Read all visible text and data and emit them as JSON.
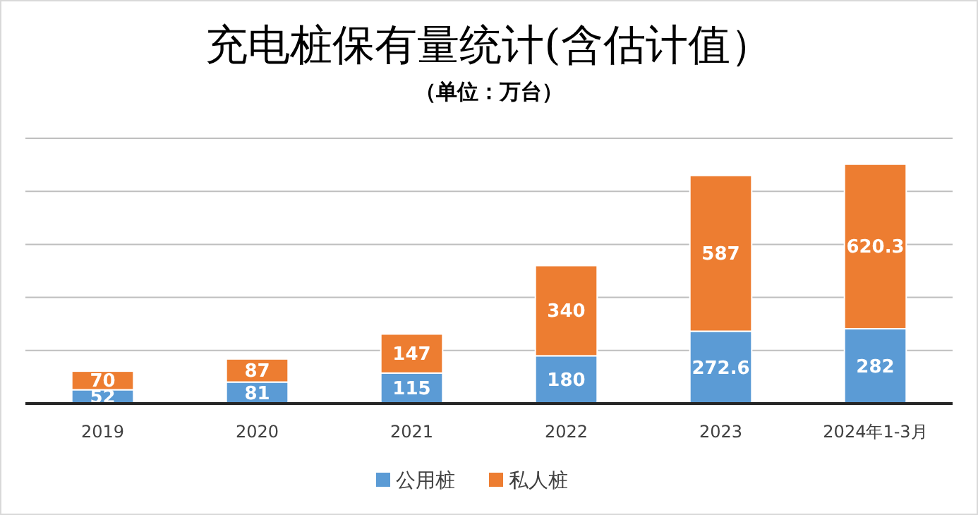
{
  "chart_data": {
    "type": "bar",
    "title": "充电桩保有量统计(含估计值）",
    "subtitle": "（单位：万台）",
    "categories": [
      "2019",
      "2020",
      "2021",
      "2022",
      "2023",
      "2024年1-3月"
    ],
    "series": [
      {
        "name": "公用桩",
        "color": "#5b9bd5",
        "values": [
          52,
          81,
          115,
          180,
          272.6,
          282
        ]
      },
      {
        "name": "私人桩",
        "color": "#ed7d31",
        "values": [
          70,
          87,
          147,
          340,
          587,
          620.3
        ]
      }
    ],
    "stacked": true,
    "data_labels": true,
    "ylim": [
      0,
      1000
    ],
    "yticks": [
      {
        "value": 0,
        "label": null
      },
      {
        "value": 200,
        "label": null
      },
      {
        "value": 400,
        "label": null
      },
      {
        "value": 600,
        "label": null
      },
      {
        "value": 800,
        "label": null
      },
      {
        "value": 1000,
        "label": null
      }
    ],
    "tick_labels": "x",
    "grid": "y",
    "legend": "bottom"
  }
}
